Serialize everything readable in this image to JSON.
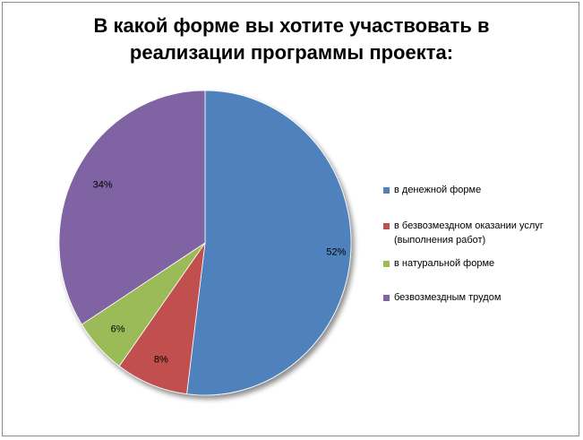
{
  "chart_data": {
    "type": "pie",
    "title": "В какой форме вы хотите участвовать в реализации программы проекта:",
    "title_lines": [
      "В какой форме вы хотите участвовать в",
      "реализации программы проекта:"
    ],
    "slices": [
      {
        "label": "в денежной форме",
        "value": 52,
        "display": "52%",
        "color": "#4F81BD"
      },
      {
        "label": "в безвозмездном оказании услуг (выполнения работ)",
        "value": 8,
        "display": "8%",
        "color": "#C0504D"
      },
      {
        "label": "в натуральной форме",
        "value": 6,
        "display": "6%",
        "color": "#9BBB59"
      },
      {
        "label": "безвозмездным трудом",
        "value": 34,
        "display": "34%",
        "color": "#8064A2"
      }
    ],
    "legend_position": "right"
  },
  "legend": {
    "items": [
      {
        "lines": [
          "в денежной форме"
        ]
      },
      {
        "lines": [
          "в безвозмездном оказании услуг",
          "(выполнения работ)"
        ]
      },
      {
        "lines": [
          "в натуральной форме"
        ]
      },
      {
        "lines": [
          "безвозмездным трудом"
        ]
      }
    ]
  }
}
